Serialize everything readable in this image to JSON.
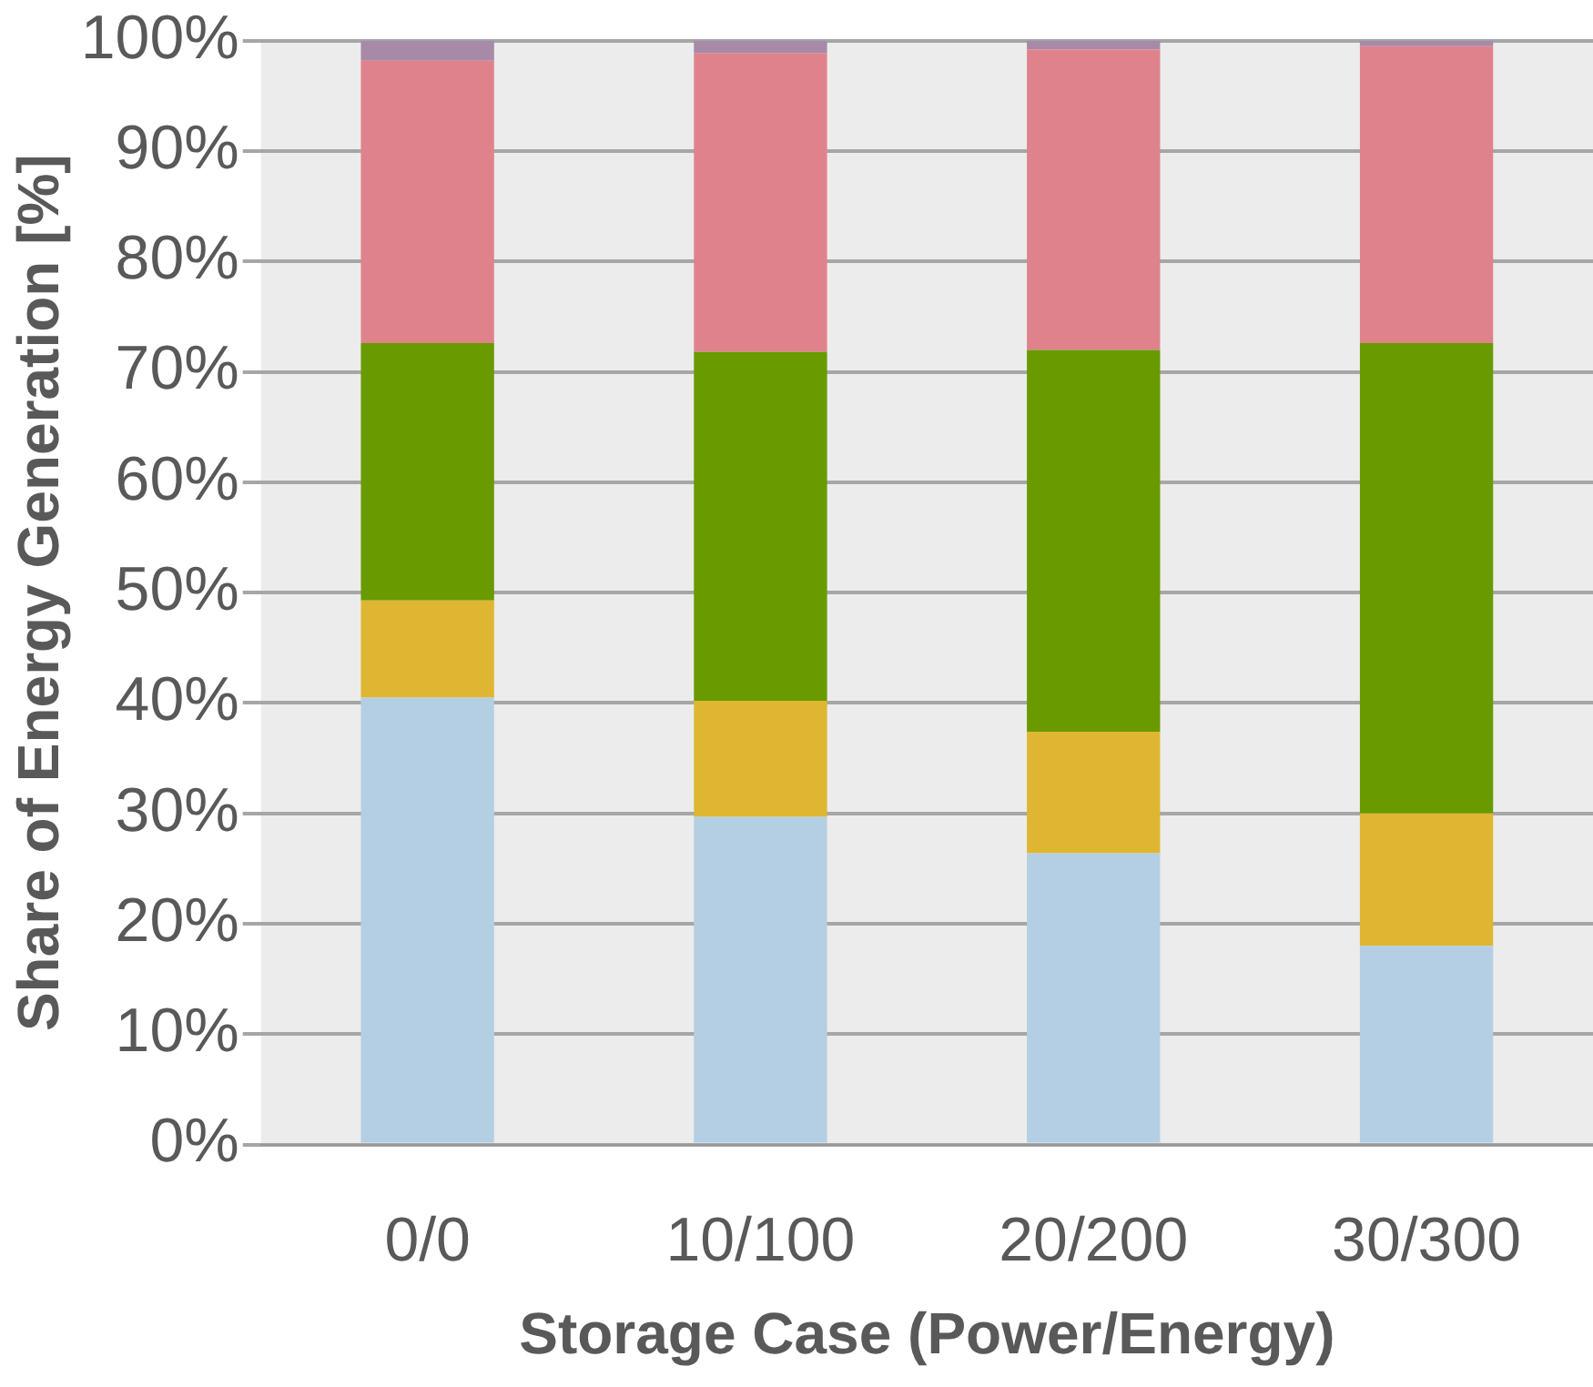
{
  "chart_data": {
    "type": "bar",
    "stacked": true,
    "xlabel": "Storage Case (Power/Energy)",
    "ylabel": "Share of Energy Generation [%]",
    "categories": [
      "0/0",
      "10/100",
      "20/200",
      "30/300"
    ],
    "series": [
      {
        "color": "#b4cfe3",
        "values": [
          40.5,
          29.7,
          26.4,
          18.0
        ]
      },
      {
        "color": "#dfb632",
        "values": [
          8.8,
          10.5,
          11.0,
          12.0
        ]
      },
      {
        "color": "#699a00",
        "values": [
          23.3,
          31.6,
          34.6,
          42.6
        ]
      },
      {
        "color": "#e0828b",
        "values": [
          25.6,
          27.1,
          27.2,
          26.9
        ]
      },
      {
        "color": "#a68aa8",
        "values": [
          1.8,
          1.1,
          0.8,
          0.5
        ]
      }
    ],
    "ylim": [
      0,
      100
    ],
    "yticks": [
      {
        "value": 0,
        "label": "0%"
      },
      {
        "value": 10,
        "label": "10%"
      },
      {
        "value": 20,
        "label": "20%"
      },
      {
        "value": 30,
        "label": "30%"
      },
      {
        "value": 40,
        "label": "40%"
      },
      {
        "value": 50,
        "label": "50%"
      },
      {
        "value": 60,
        "label": "60%"
      },
      {
        "value": 70,
        "label": "70%"
      },
      {
        "value": 80,
        "label": "80%"
      },
      {
        "value": 90,
        "label": "90%"
      },
      {
        "value": 100,
        "label": "100%"
      }
    ],
    "grid": "y",
    "legend": false
  }
}
